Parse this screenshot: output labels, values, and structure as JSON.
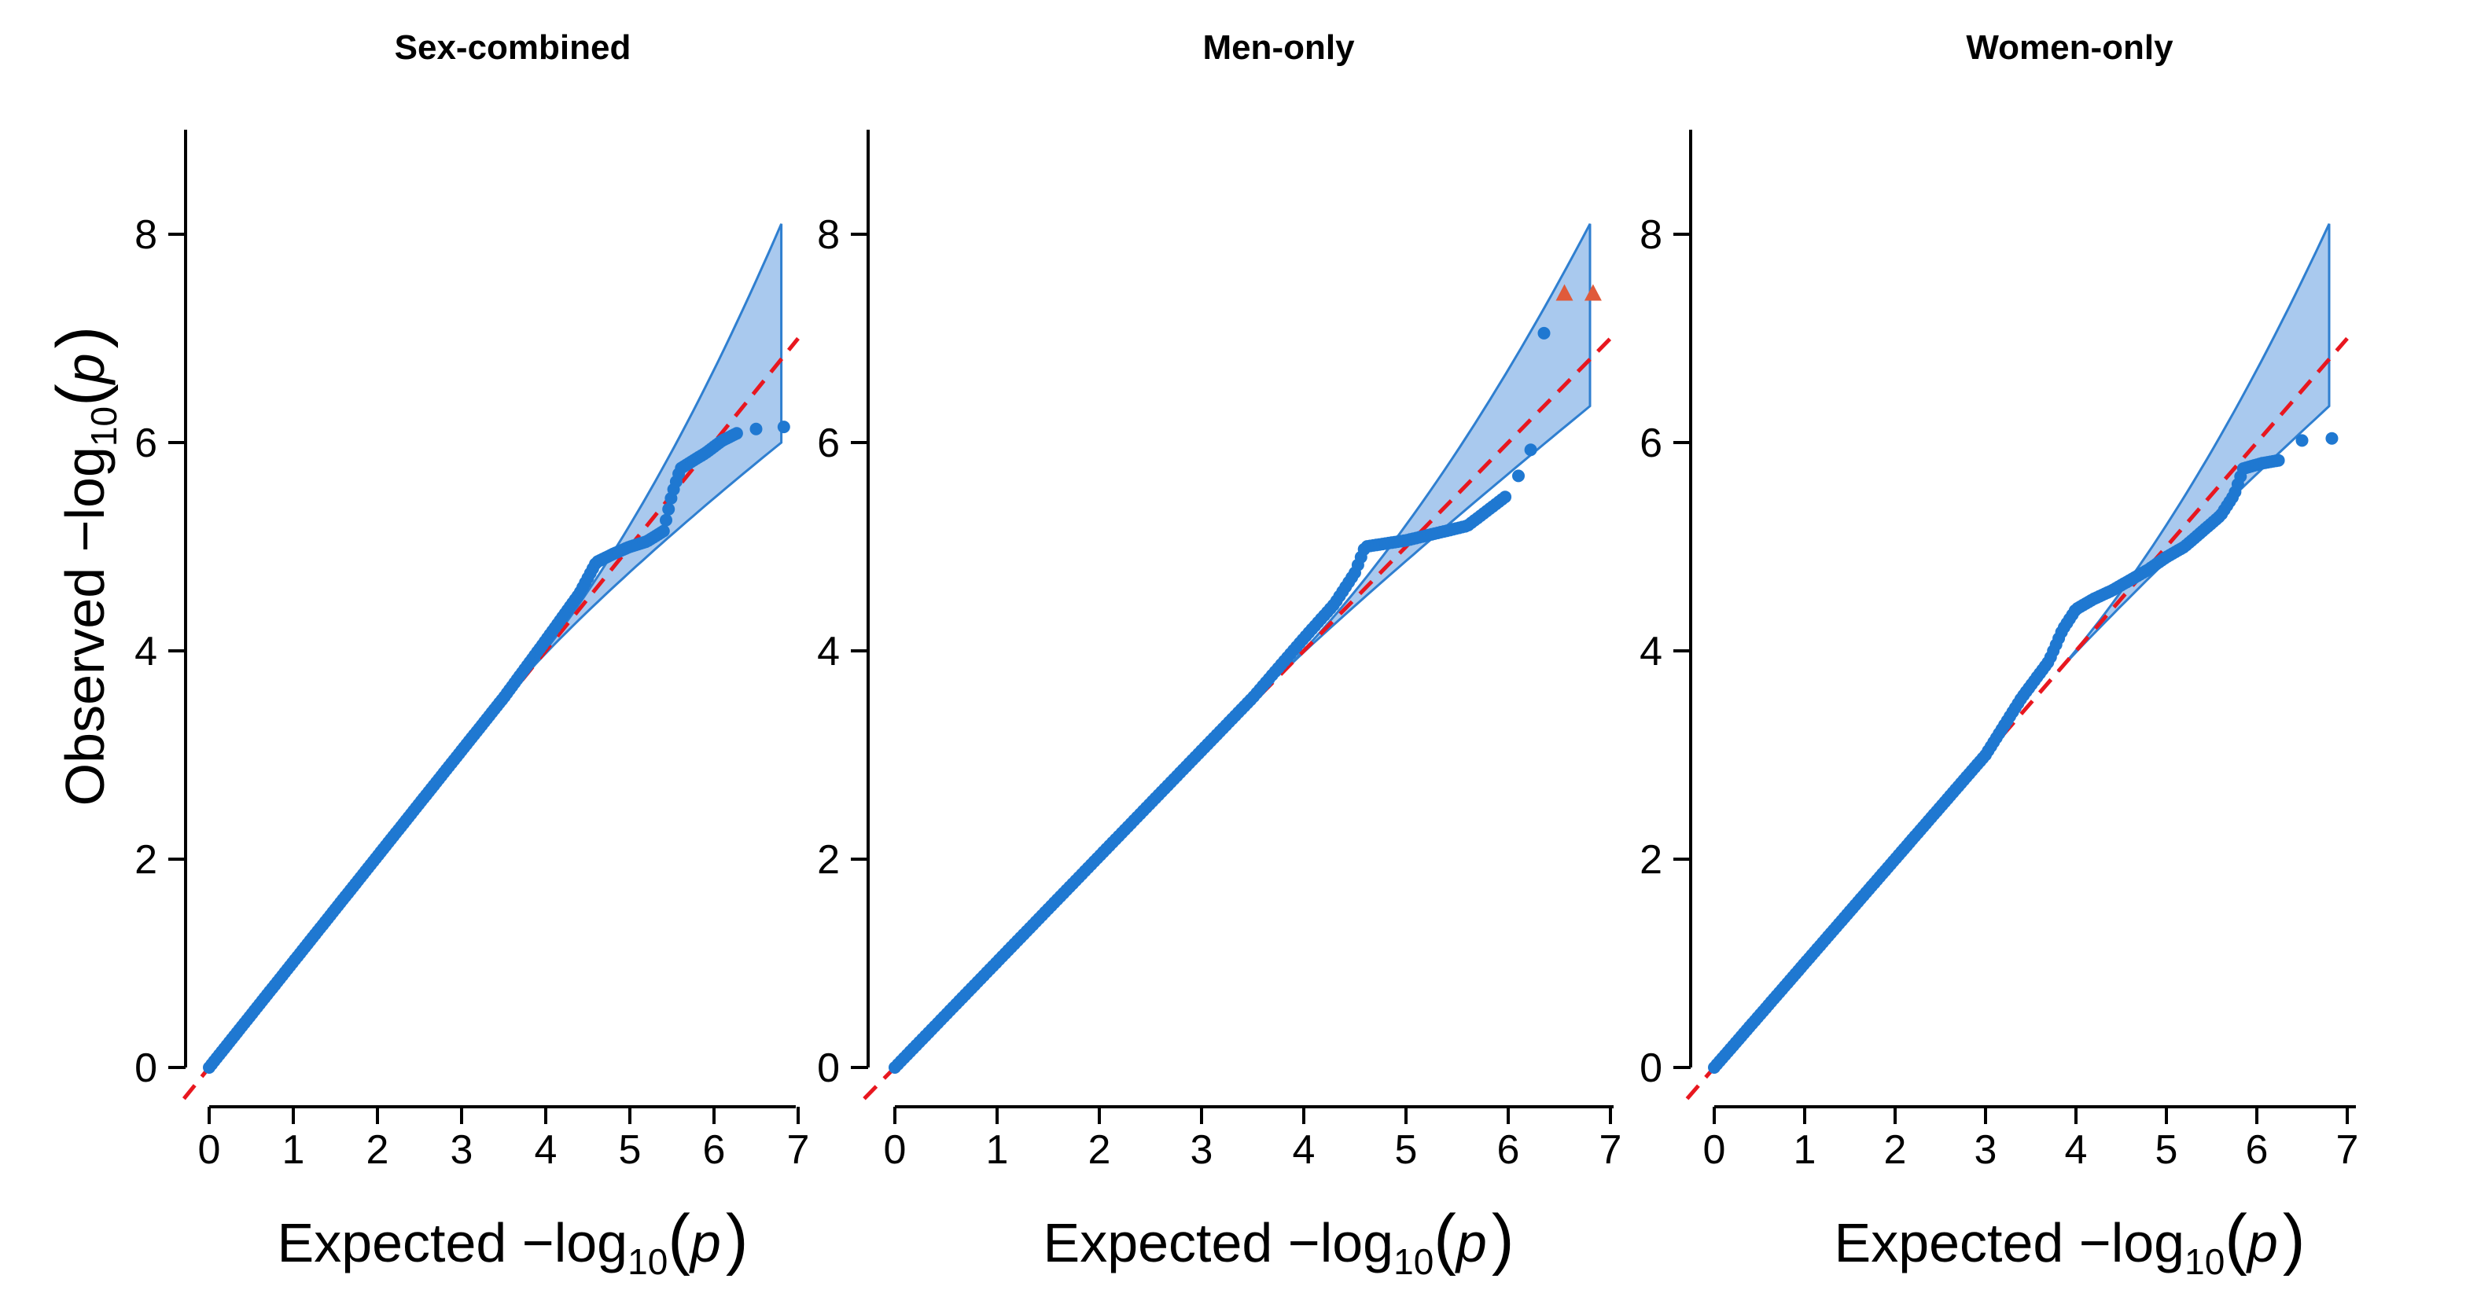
{
  "figure": {
    "y_axis_label": {
      "main": "Observed  −log",
      "sub": "10",
      "open": "(",
      "var": "p",
      "close": ")"
    },
    "x_axis_label": {
      "main": "Expected  −log",
      "sub": "10",
      "open": "(",
      "var": "p",
      "close": ")"
    }
  },
  "colors": {
    "points": "#1f78d1",
    "band_fill": "#a9c9ee",
    "band_edge": "#2f7fd0",
    "diagonal": "#e8171f",
    "outlier": "#e05a3a"
  },
  "chart_data": [
    {
      "type": "scatter",
      "title": "Sex-combined",
      "xlim": [
        0,
        7
      ],
      "ylim": [
        0,
        9
      ],
      "xticks": [
        0,
        1,
        2,
        3,
        4,
        5,
        6,
        7
      ],
      "yticks": [
        0,
        2,
        4,
        6,
        8
      ],
      "reference_line": "y = x (dashed)",
      "confidence_band": {
        "x": [
          3.8,
          6.8
        ],
        "lower_end": 6.0,
        "upper_end": 8.1
      },
      "curve": [
        [
          0,
          0
        ],
        [
          3.5,
          3.55
        ],
        [
          4.0,
          4.1
        ],
        [
          4.4,
          4.55
        ],
        [
          4.6,
          4.85
        ],
        [
          4.8,
          4.93
        ],
        [
          5.0,
          5.0
        ],
        [
          5.2,
          5.05
        ],
        [
          5.4,
          5.15
        ],
        [
          5.5,
          5.5
        ],
        [
          5.6,
          5.75
        ],
        [
          5.9,
          5.9
        ],
        [
          6.1,
          6.02
        ],
        [
          6.3,
          6.1
        ]
      ],
      "points": [
        [
          6.5,
          6.13
        ],
        [
          6.83,
          6.15
        ]
      ],
      "outliers": []
    },
    {
      "type": "scatter",
      "title": "Men-only",
      "xlim": [
        0,
        7
      ],
      "ylim": [
        0,
        9
      ],
      "xticks": [
        0,
        1,
        2,
        3,
        4,
        5,
        6,
        7
      ],
      "yticks": [
        0,
        2,
        4,
        6,
        8
      ],
      "reference_line": "y = x (dashed)",
      "confidence_band": {
        "x": [
          3.8,
          6.8
        ],
        "lower_end": 6.35,
        "upper_end": 8.1
      },
      "curve": [
        [
          0,
          0
        ],
        [
          3.5,
          3.55
        ],
        [
          4.0,
          4.12
        ],
        [
          4.3,
          4.45
        ],
        [
          4.5,
          4.75
        ],
        [
          4.6,
          5.0
        ],
        [
          4.8,
          5.03
        ],
        [
          5.0,
          5.06
        ],
        [
          5.3,
          5.13
        ],
        [
          5.6,
          5.2
        ],
        [
          5.8,
          5.35
        ],
        [
          6.0,
          5.5
        ]
      ],
      "points": [
        [
          6.1,
          5.68
        ],
        [
          6.22,
          5.93
        ],
        [
          6.35,
          7.05
        ]
      ],
      "outliers": [
        [
          6.55,
          7.43
        ],
        [
          6.83,
          7.43
        ]
      ]
    },
    {
      "type": "scatter",
      "title": "Women-only",
      "xlim": [
        0,
        7
      ],
      "ylim": [
        0,
        9
      ],
      "xticks": [
        0,
        1,
        2,
        3,
        4,
        5,
        6,
        7
      ],
      "yticks": [
        0,
        2,
        4,
        6,
        8
      ],
      "reference_line": "y = x (dashed)",
      "confidence_band": {
        "x": [
          3.8,
          6.8
        ],
        "lower_end": 6.35,
        "upper_end": 8.1
      },
      "curve": [
        [
          0,
          0
        ],
        [
          3.0,
          3.0
        ],
        [
          3.4,
          3.55
        ],
        [
          3.7,
          3.9
        ],
        [
          3.85,
          4.2
        ],
        [
          4.0,
          4.4
        ],
        [
          4.2,
          4.5
        ],
        [
          4.4,
          4.58
        ],
        [
          4.6,
          4.68
        ],
        [
          4.8,
          4.78
        ],
        [
          5.0,
          4.9
        ],
        [
          5.2,
          5.0
        ],
        [
          5.4,
          5.15
        ],
        [
          5.6,
          5.3
        ],
        [
          5.75,
          5.5
        ],
        [
          5.85,
          5.75
        ],
        [
          6.05,
          5.8
        ],
        [
          6.25,
          5.83
        ]
      ],
      "points": [
        [
          6.5,
          6.02
        ],
        [
          6.83,
          6.04
        ]
      ],
      "outliers": []
    }
  ]
}
